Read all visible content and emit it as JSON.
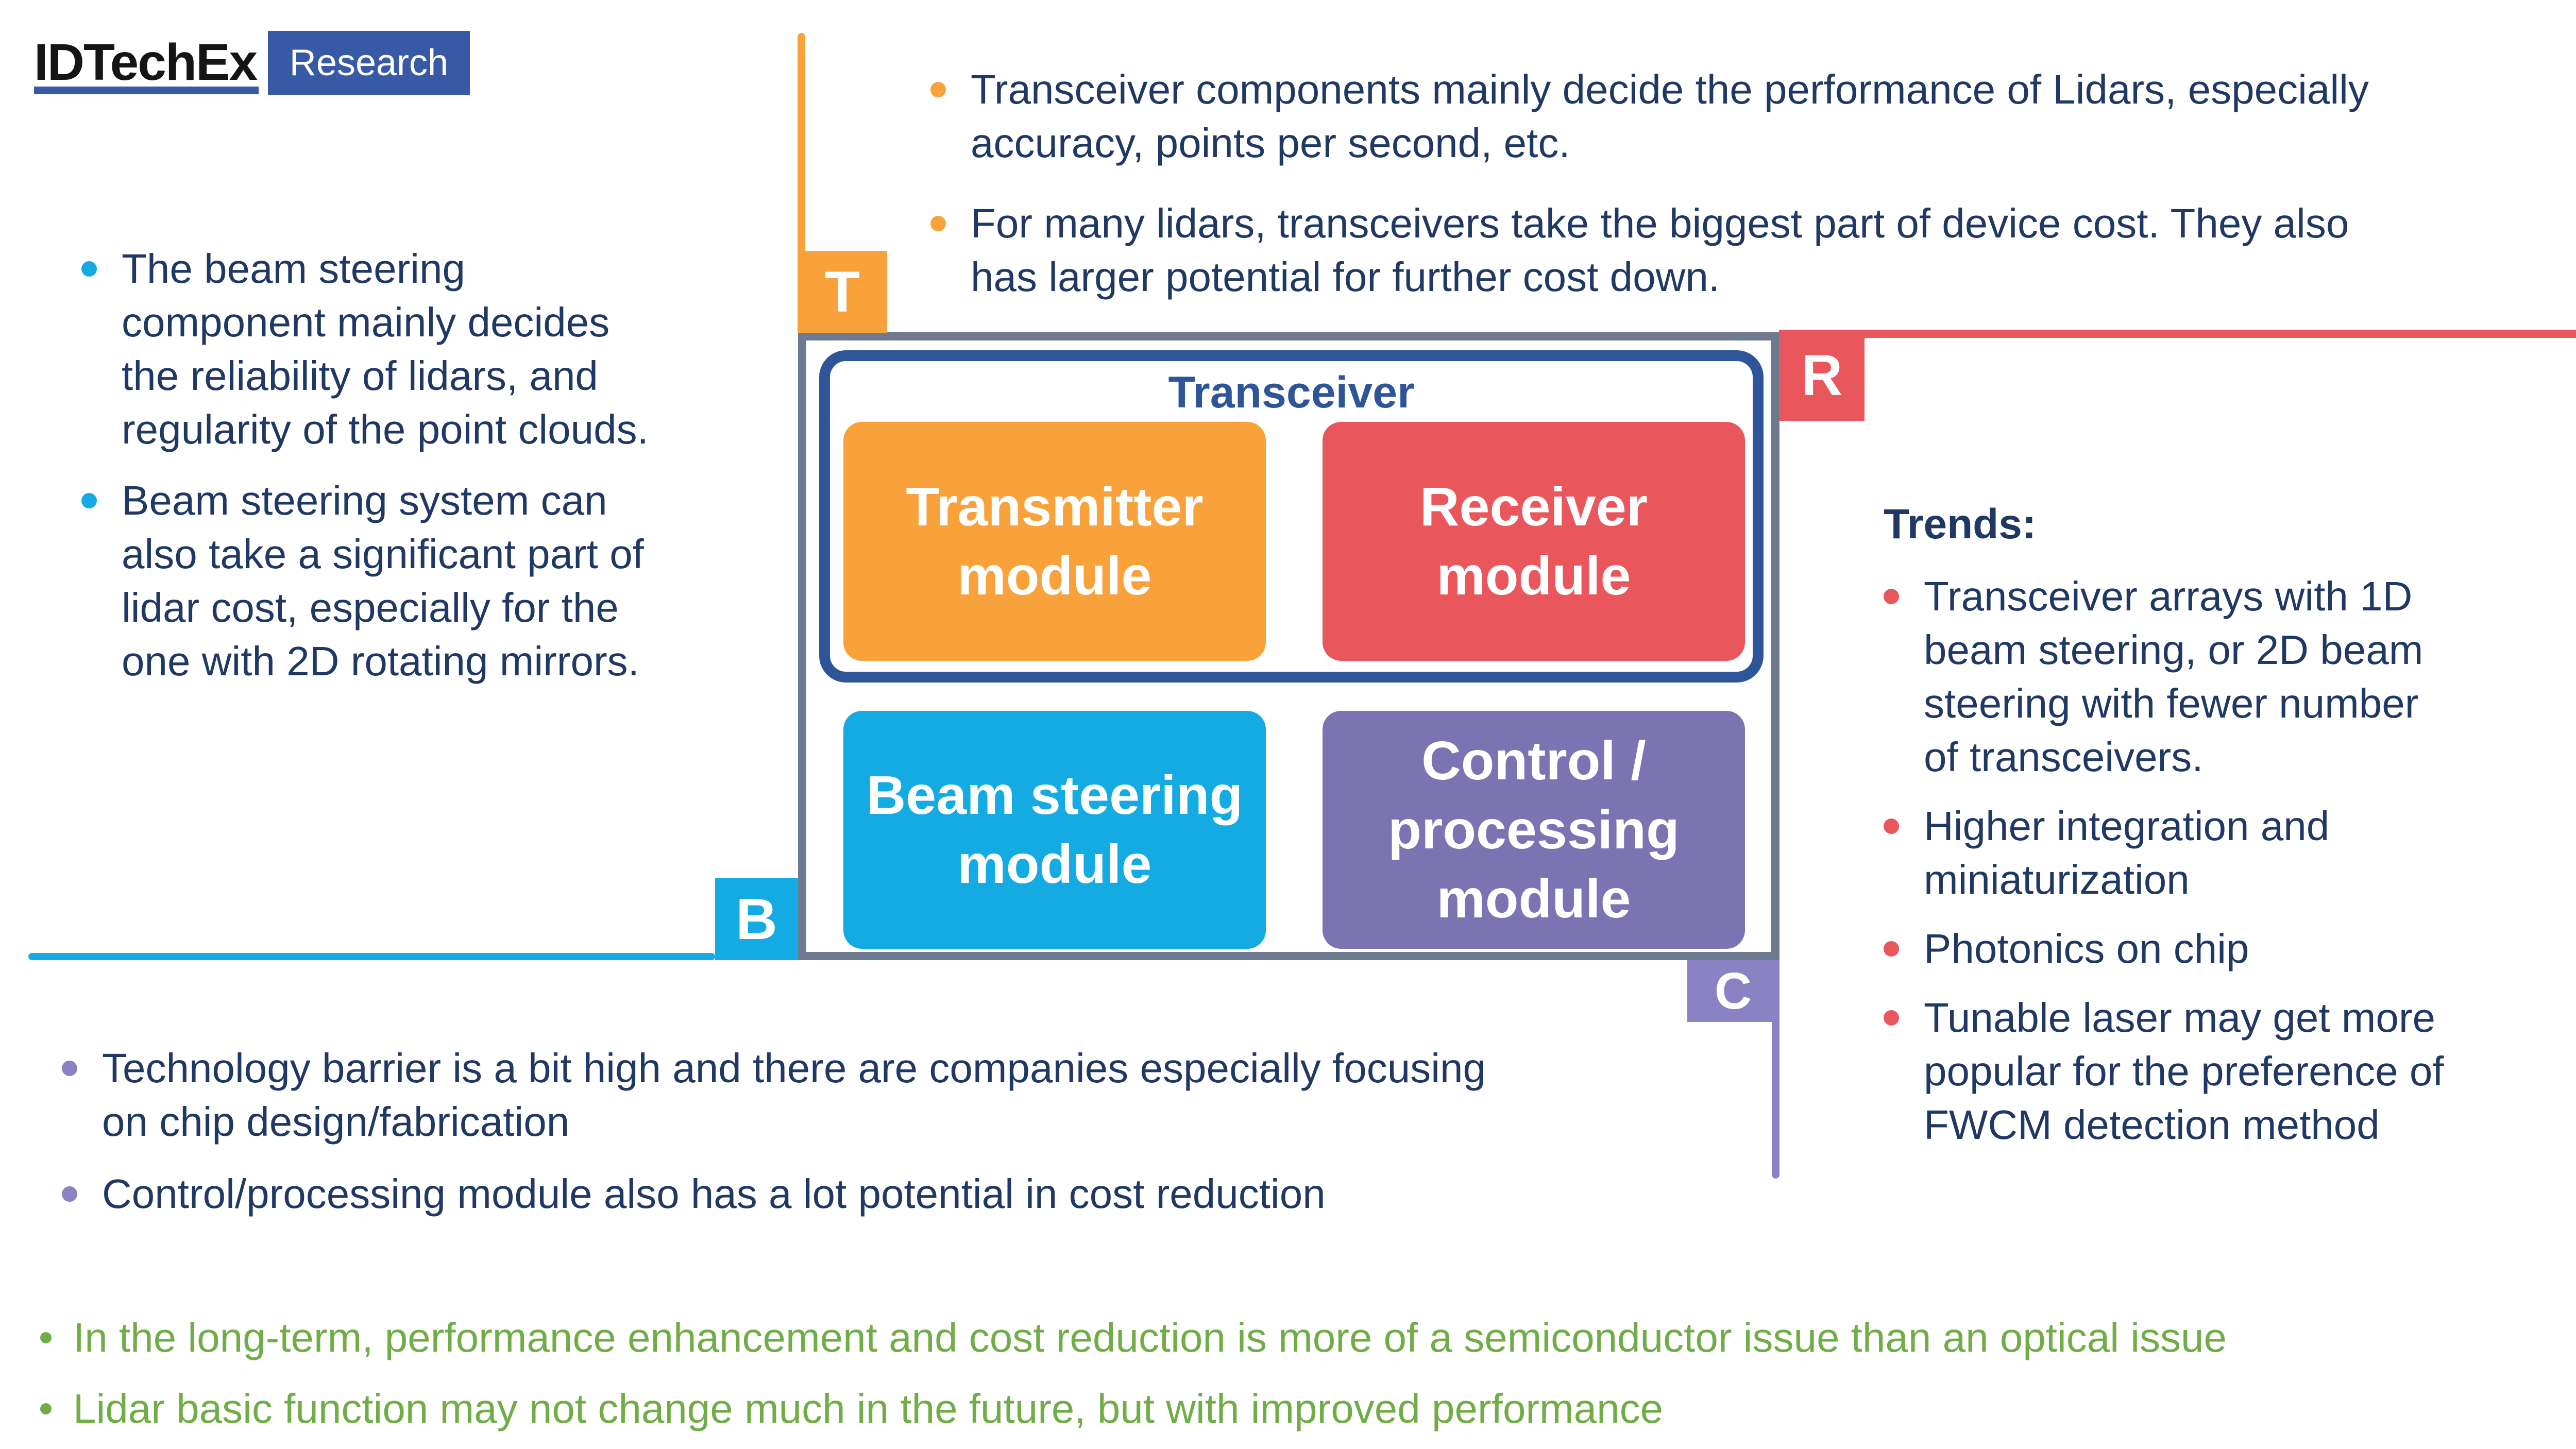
{
  "slide": {
    "logo": {
      "brand": "IDTechEx",
      "suffix": "Research"
    },
    "top_notes": {
      "bullets": [
        "Transceiver components mainly decide the performance of Lidars, especially\naccuracy, points per second, etc.",
        "For many lidars, transceivers take the biggest part of device cost. They also\nhas larger potential for further cost down."
      ]
    },
    "left_notes": {
      "bullets": [
        "The beam steering\ncomponent mainly decides\nthe reliability of lidars, and\nregularity of the point clouds.",
        "Beam steering system can\nalso take a significant part of\nlidar cost, especially for the\none with 2D rotating mirrors."
      ]
    },
    "diagram": {
      "group_label": "Transceiver",
      "markers": {
        "t": "T",
        "r": "R",
        "b": "B",
        "c": "C"
      },
      "modules": {
        "transmitter": {
          "label": "Transmitter\nmodule",
          "color": "#F9A23C"
        },
        "receiver": {
          "label": "Receiver\nmodule",
          "color": "#E9575C"
        },
        "beam_steering": {
          "label": "Beam steering\nmodule",
          "color": "#14ABE3"
        },
        "control": {
          "label": "Control /\nprocessing\nmodule",
          "color": "#7B73B2"
        }
      }
    },
    "trends": {
      "heading": "Trends:",
      "bullets": [
        "Transceiver arrays with 1D\nbeam steering, or 2D beam\nsteering with fewer number\nof transceivers.",
        "Higher integration and\nminiaturization",
        "Photonics on chip",
        "Tunable laser may get more\npopular for the preference of\nFWCM detection method"
      ]
    },
    "bottom_notes": {
      "bullets": [
        "Technology barrier is a bit high and there are companies especially focusing\non chip design/fabrication",
        "Control/processing module also has a lot potential in cost reduction"
      ]
    },
    "takeaways": {
      "bullets": [
        "In the long-term, performance enhancement and cost reduction is more of a semiconductor issue than an optical issue",
        "Lidar basic function may not change much in the future, but with improved performance"
      ]
    },
    "colors": {
      "navy_text": "#1F3864",
      "orange": "#F9A23C",
      "red": "#E9575C",
      "cyan": "#14ABE3",
      "purple": "#7B73B2",
      "purple_light": "#8B82C4",
      "green": "#70AD47",
      "gray_border": "#6E7A90",
      "inner_border_blue": "#2E5597",
      "logo_blue": "#3859A6"
    }
  }
}
